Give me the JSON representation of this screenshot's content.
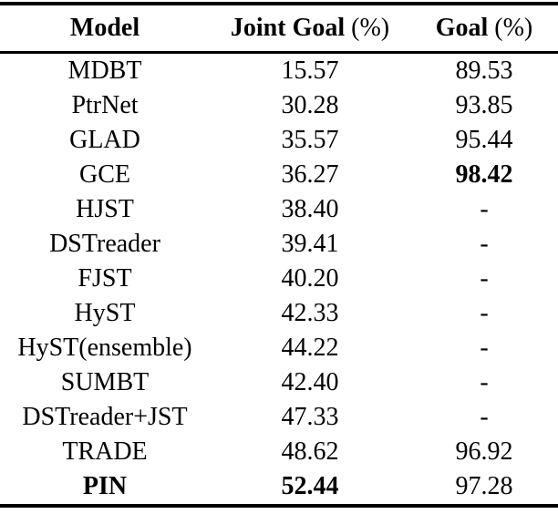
{
  "table": {
    "columns": [
      {
        "label": "Model",
        "suffix": ""
      },
      {
        "label": "Joint Goal",
        "suffix": " (%)"
      },
      {
        "label": "Goal",
        "suffix": " (%)"
      }
    ],
    "rows": [
      {
        "model": "MDBT",
        "joint_goal": "15.57",
        "goal": "89.53",
        "bold": []
      },
      {
        "model": "PtrNet",
        "joint_goal": "30.28",
        "goal": "93.85",
        "bold": []
      },
      {
        "model": "GLAD",
        "joint_goal": "35.57",
        "goal": "95.44",
        "bold": []
      },
      {
        "model": "GCE",
        "joint_goal": "36.27",
        "goal": "98.42",
        "bold": [
          "goal"
        ]
      },
      {
        "model": "HJST",
        "joint_goal": "38.40",
        "goal": "-",
        "bold": []
      },
      {
        "model": "DSTreader",
        "joint_goal": "39.41",
        "goal": "-",
        "bold": []
      },
      {
        "model": "FJST",
        "joint_goal": "40.20",
        "goal": "-",
        "bold": []
      },
      {
        "model": "HyST",
        "joint_goal": "42.33",
        "goal": "-",
        "bold": []
      },
      {
        "model": "HyST(ensemble)",
        "joint_goal": "44.22",
        "goal": "-",
        "bold": []
      },
      {
        "model": "SUMBT",
        "joint_goal": "42.40",
        "goal": "-",
        "bold": []
      },
      {
        "model": "DSTreader+JST",
        "joint_goal": "47.33",
        "goal": "-",
        "bold": []
      },
      {
        "model": "TRADE",
        "joint_goal": "48.62",
        "goal": "96.92",
        "bold": []
      },
      {
        "model": "PIN",
        "joint_goal": "52.44",
        "goal": "97.28",
        "bold": [
          "model",
          "joint_goal"
        ]
      }
    ]
  }
}
